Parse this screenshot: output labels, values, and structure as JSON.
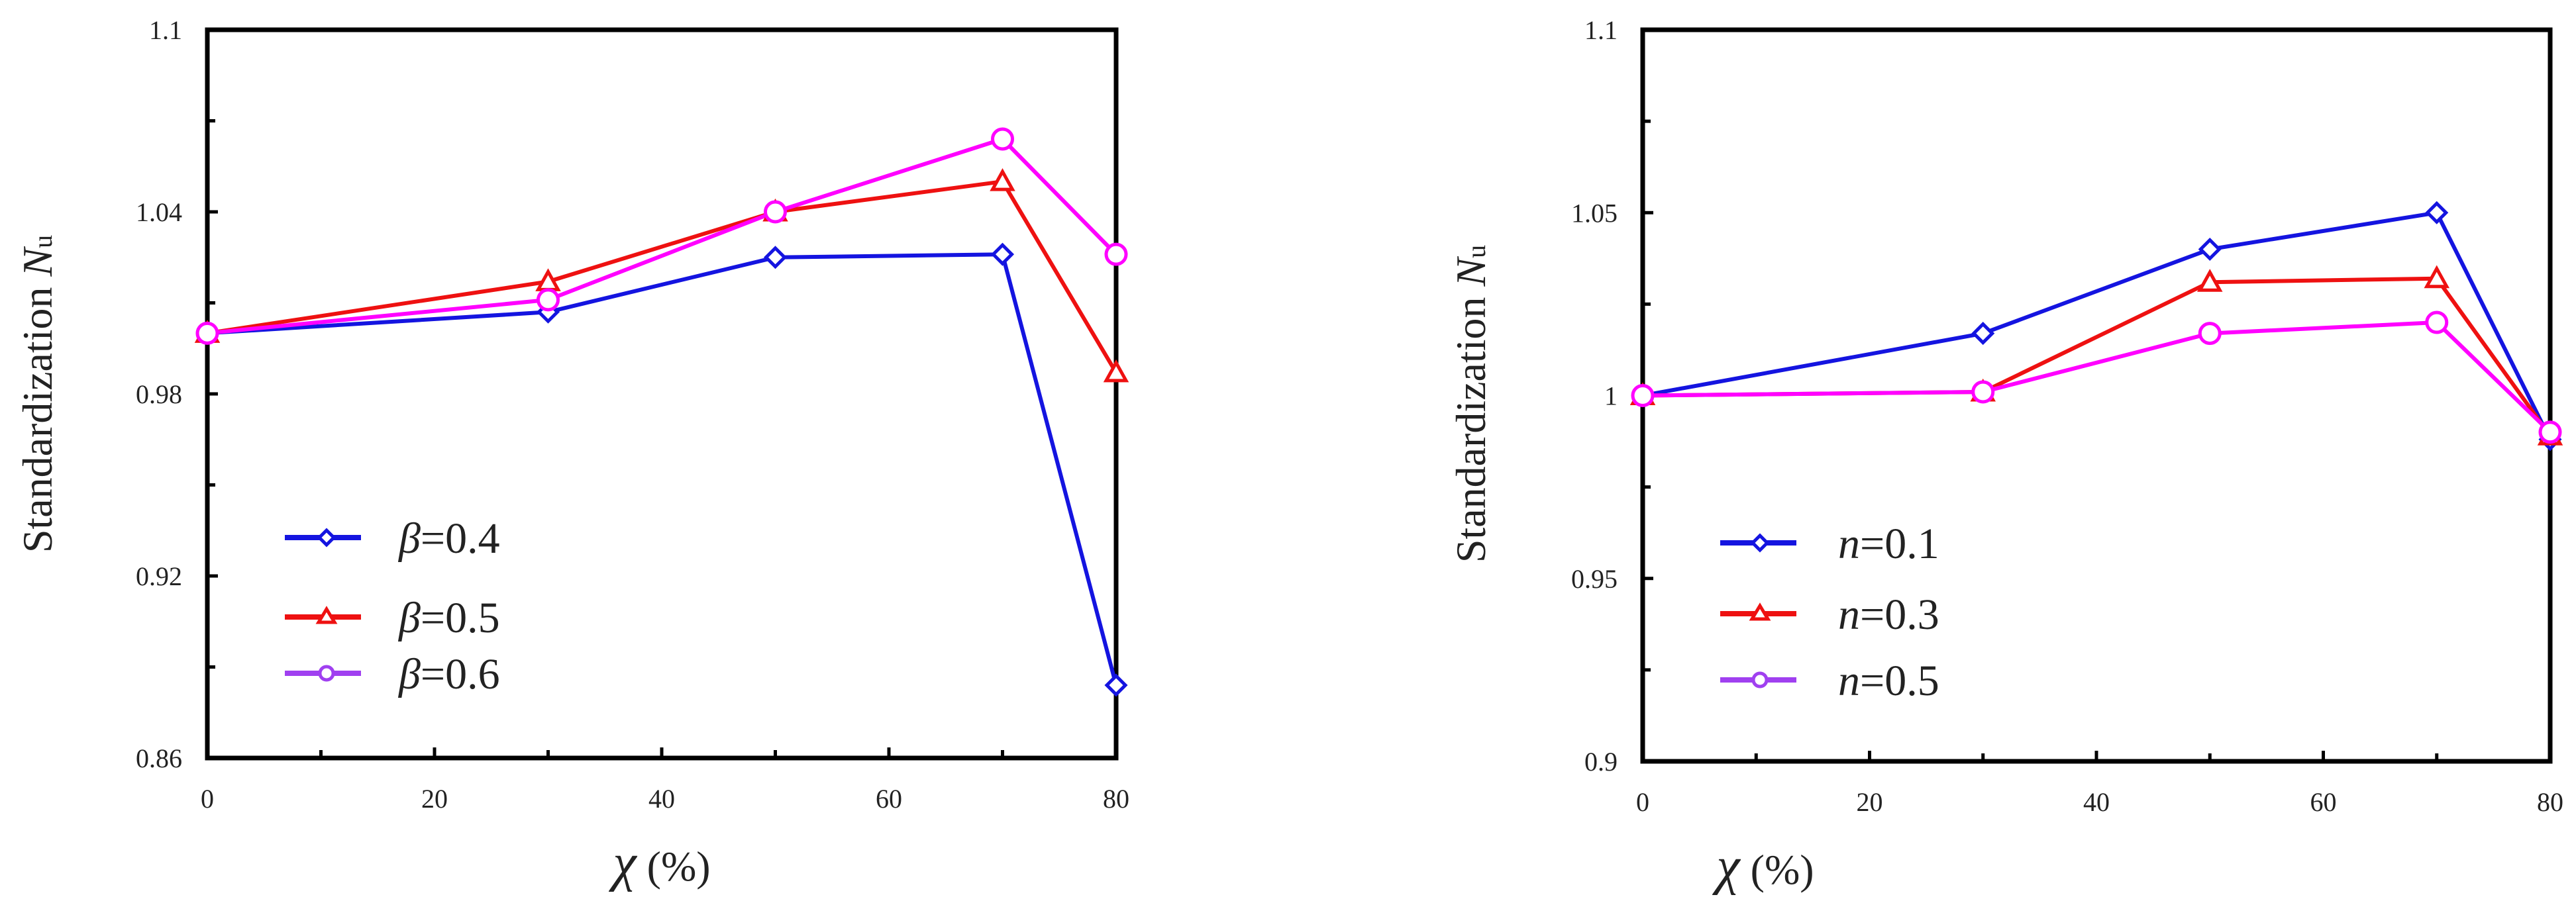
{
  "chart_data": [
    {
      "type": "line",
      "title": "",
      "xlabel": {
        "symbol": "χ",
        "unit": "(%)"
      },
      "ylabel": {
        "main": "Standardization",
        "symbol": "N",
        "subscript": "u"
      },
      "x": [
        0,
        30,
        50,
        70,
        80
      ],
      "xlim": [
        0,
        80
      ],
      "ylim": [
        0.86,
        1.1
      ],
      "xticks": [
        0,
        20,
        40,
        60,
        80
      ],
      "xtick_labels": [
        "0",
        "20",
        "40",
        "60",
        "80"
      ],
      "yticks": [
        0.86,
        0.92,
        0.98,
        1.04,
        1.1
      ],
      "ytick_labels": [
        "0.86",
        "0.92",
        "0.98",
        "1.04",
        "1.1"
      ],
      "legend_position": "lower-left",
      "series": [
        {
          "name": "β=0.4",
          "symbol": "β",
          "value_label": "=0.4",
          "marker": "diamond",
          "color": "#1414e0",
          "values": [
            1.0,
            1.007,
            1.025,
            1.026,
            0.884
          ]
        },
        {
          "name": "β=0.5",
          "symbol": "β",
          "value_label": "=0.5",
          "marker": "triangle",
          "color": "#ee1111",
          "values": [
            1.0,
            1.017,
            1.04,
            1.05,
            0.987
          ]
        },
        {
          "name": "β=0.6",
          "symbol": "β",
          "value_label": "=0.6",
          "marker": "circle",
          "color": "#ff00ff",
          "legend_color": "#a040f0",
          "values": [
            1.0,
            1.011,
            1.04,
            1.064,
            1.026
          ]
        }
      ]
    },
    {
      "type": "line",
      "title": "",
      "xlabel": {
        "symbol": "χ",
        "unit": "(%)"
      },
      "ylabel": {
        "main": "Standardization",
        "symbol": "N",
        "subscript": "u"
      },
      "x": [
        0,
        30,
        50,
        70,
        80
      ],
      "xlim": [
        0,
        80
      ],
      "ylim": [
        0.9,
        1.1
      ],
      "xticks": [
        0,
        20,
        40,
        60,
        80
      ],
      "xtick_labels": [
        "0",
        "20",
        "40",
        "60",
        "80"
      ],
      "yticks": [
        0.9,
        0.95,
        1.0,
        1.05,
        1.1
      ],
      "ytick_labels": [
        "0.9",
        "0.95",
        "1",
        "1.05",
        "1.1"
      ],
      "legend_position": "lower-left",
      "series": [
        {
          "name": "n=0.1",
          "symbol": "n",
          "value_label": "=0.1",
          "marker": "diamond",
          "color": "#1414e0",
          "values": [
            1.0,
            1.017,
            1.04,
            1.05,
            0.988
          ]
        },
        {
          "name": "n=0.3",
          "symbol": "n",
          "value_label": "=0.3",
          "marker": "triangle",
          "color": "#ee1111",
          "values": [
            1.0,
            1.001,
            1.031,
            1.032,
            0.989
          ]
        },
        {
          "name": "n=0.5",
          "symbol": "n",
          "value_label": "=0.5",
          "marker": "circle",
          "color": "#ff00ff",
          "legend_color": "#a040f0",
          "values": [
            1.0,
            1.001,
            1.017,
            1.02,
            0.99
          ]
        }
      ]
    }
  ]
}
